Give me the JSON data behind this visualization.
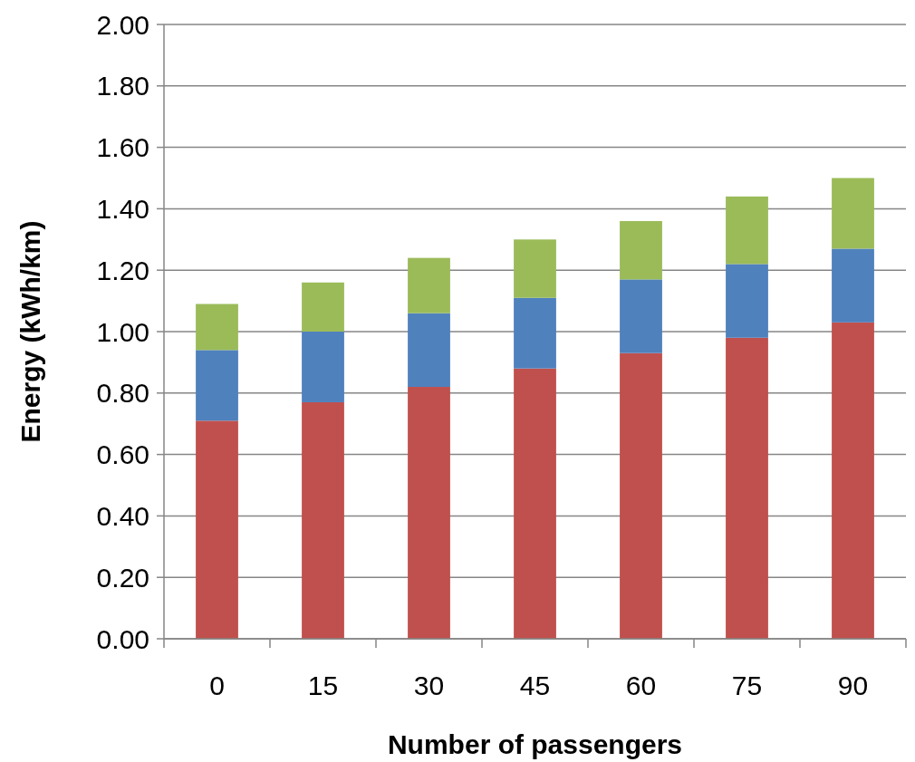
{
  "chart_data": {
    "type": "bar",
    "stacked": true,
    "xlabel": "Number of passengers",
    "ylabel": "Energy (kWh/km)",
    "categories": [
      "0",
      "15",
      "30",
      "45",
      "60",
      "75",
      "90"
    ],
    "series": [
      {
        "color": "#c0504d",
        "values": [
          0.71,
          0.77,
          0.82,
          0.88,
          0.93,
          0.98,
          1.03
        ]
      },
      {
        "color": "#4f81bd",
        "values": [
          0.23,
          0.23,
          0.24,
          0.23,
          0.24,
          0.24,
          0.24
        ]
      },
      {
        "color": "#9bbb59",
        "values": [
          0.15,
          0.16,
          0.18,
          0.19,
          0.19,
          0.22,
          0.23
        ]
      }
    ],
    "ylim": [
      0,
      2
    ],
    "yticks": [
      {
        "value": 0,
        "label": "0.00"
      },
      {
        "value": 0.2,
        "label": "0.20"
      },
      {
        "value": 0.4,
        "label": "0.40"
      },
      {
        "value": 0.6,
        "label": "0.60"
      },
      {
        "value": 0.8,
        "label": "0.80"
      },
      {
        "value": 1,
        "label": "1.00"
      },
      {
        "value": 1.2,
        "label": "1.20"
      },
      {
        "value": 1.4,
        "label": "1.40"
      },
      {
        "value": 1.6,
        "label": "1.60"
      },
      {
        "value": 1.8,
        "label": "1.80"
      },
      {
        "value": 2,
        "label": "2.00"
      }
    ],
    "grid": "y"
  }
}
